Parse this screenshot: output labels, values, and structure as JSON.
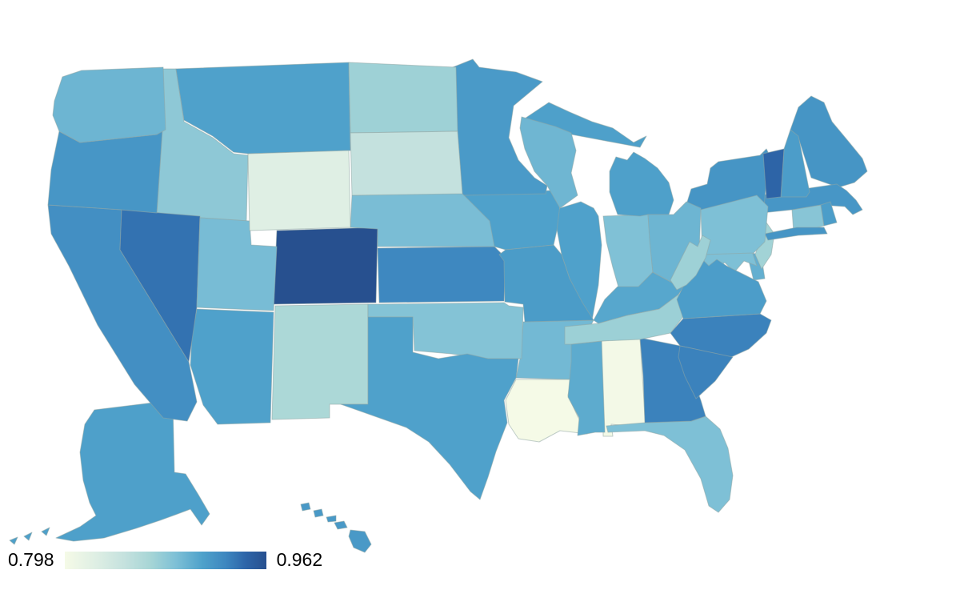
{
  "legend": {
    "min_label": "0.798",
    "max_label": "0.962"
  },
  "chart_data": {
    "type": "choropleth",
    "region": "USA states (albers-style layout, Alaska and Hawaii inset)",
    "value_domain": [
      0.798,
      0.962
    ],
    "background_color": "#ffffff",
    "border_color": "#8FA6A4",
    "colorscale": [
      {
        "t": 0.0,
        "color": "#F5FAE7"
      },
      {
        "t": 0.15,
        "color": "#DFEFE4"
      },
      {
        "t": 0.3,
        "color": "#C4E1DE"
      },
      {
        "t": 0.42,
        "color": "#A8D6D6"
      },
      {
        "t": 0.55,
        "color": "#7EC0D6"
      },
      {
        "t": 0.68,
        "color": "#4FA2CB"
      },
      {
        "t": 0.8,
        "color": "#3D86BF"
      },
      {
        "t": 0.9,
        "color": "#2D64A8"
      },
      {
        "t": 1.0,
        "color": "#27508F"
      }
    ],
    "states": [
      {
        "code": "AL",
        "name": "Alabama",
        "value": 0.8
      },
      {
        "code": "AK",
        "name": "Alaska",
        "value": 0.911
      },
      {
        "code": "AZ",
        "name": "Arizona",
        "value": 0.91
      },
      {
        "code": "AR",
        "name": "Arkansas",
        "value": 0.893
      },
      {
        "code": "CA",
        "name": "California",
        "value": 0.923
      },
      {
        "code": "CO",
        "name": "Colorado",
        "value": 0.962
      },
      {
        "code": "CT",
        "name": "Connecticut",
        "value": 0.883
      },
      {
        "code": "DE",
        "name": "Delaware",
        "value": 0.9
      },
      {
        "code": "FL",
        "name": "Florida",
        "value": 0.888
      },
      {
        "code": "GA",
        "name": "Georgia",
        "value": 0.931
      },
      {
        "code": "HI",
        "name": "Hawaii",
        "value": 0.916
      },
      {
        "code": "ID",
        "name": "Idaho",
        "value": 0.88
      },
      {
        "code": "IL",
        "name": "Illinois",
        "value": 0.91
      },
      {
        "code": "IN",
        "name": "Indiana",
        "value": 0.887
      },
      {
        "code": "IA",
        "name": "Iowa",
        "value": 0.91
      },
      {
        "code": "KS",
        "name": "Kansas",
        "value": 0.928
      },
      {
        "code": "KY",
        "name": "Kentucky",
        "value": 0.906
      },
      {
        "code": "LA",
        "name": "Louisiana",
        "value": 0.798
      },
      {
        "code": "ME",
        "name": "Maine",
        "value": 0.919
      },
      {
        "code": "MD",
        "name": "Maryland",
        "value": 0.888
      },
      {
        "code": "MA",
        "name": "Massachusetts",
        "value": 0.918
      },
      {
        "code": "MI",
        "name": "Michigan",
        "value": 0.911
      },
      {
        "code": "MN",
        "name": "Minnesota",
        "value": 0.915
      },
      {
        "code": "MS",
        "name": "Mississippi",
        "value": 0.903
      },
      {
        "code": "MO",
        "name": "Missouri",
        "value": 0.914
      },
      {
        "code": "MT",
        "name": "Montana",
        "value": 0.91
      },
      {
        "code": "NE",
        "name": "Nebraska",
        "value": 0.89
      },
      {
        "code": "NV",
        "name": "Nevada",
        "value": 0.939
      },
      {
        "code": "NH",
        "name": "New Hampshire",
        "value": 0.913
      },
      {
        "code": "NJ",
        "name": "New Jersey",
        "value": 0.87
      },
      {
        "code": "NM",
        "name": "New Mexico",
        "value": 0.864
      },
      {
        "code": "NY",
        "name": "New York",
        "value": 0.919
      },
      {
        "code": "NC",
        "name": "North Carolina",
        "value": 0.931
      },
      {
        "code": "ND",
        "name": "North Dakota",
        "value": 0.872
      },
      {
        "code": "OH",
        "name": "Ohio",
        "value": 0.896
      },
      {
        "code": "OK",
        "name": "Oklahoma",
        "value": 0.885
      },
      {
        "code": "OR",
        "name": "Oregon",
        "value": 0.918
      },
      {
        "code": "PA",
        "name": "Pennsylvania",
        "value": 0.888
      },
      {
        "code": "RI",
        "name": "Rhode Island",
        "value": 0.913
      },
      {
        "code": "SC",
        "name": "South Carolina",
        "value": 0.931
      },
      {
        "code": "SD",
        "name": "South Dakota",
        "value": 0.847
      },
      {
        "code": "TN",
        "name": "Tennessee",
        "value": 0.873
      },
      {
        "code": "TX",
        "name": "Texas",
        "value": 0.91
      },
      {
        "code": "UT",
        "name": "Utah",
        "value": 0.891
      },
      {
        "code": "VT",
        "name": "Vermont",
        "value": 0.946
      },
      {
        "code": "VA",
        "name": "Virginia",
        "value": 0.913
      },
      {
        "code": "WA",
        "name": "Washington",
        "value": 0.896
      },
      {
        "code": "WV",
        "name": "West Virginia",
        "value": 0.872
      },
      {
        "code": "WI",
        "name": "Wisconsin",
        "value": 0.895
      },
      {
        "code": "WY",
        "name": "Wyoming",
        "value": 0.823
      }
    ]
  }
}
